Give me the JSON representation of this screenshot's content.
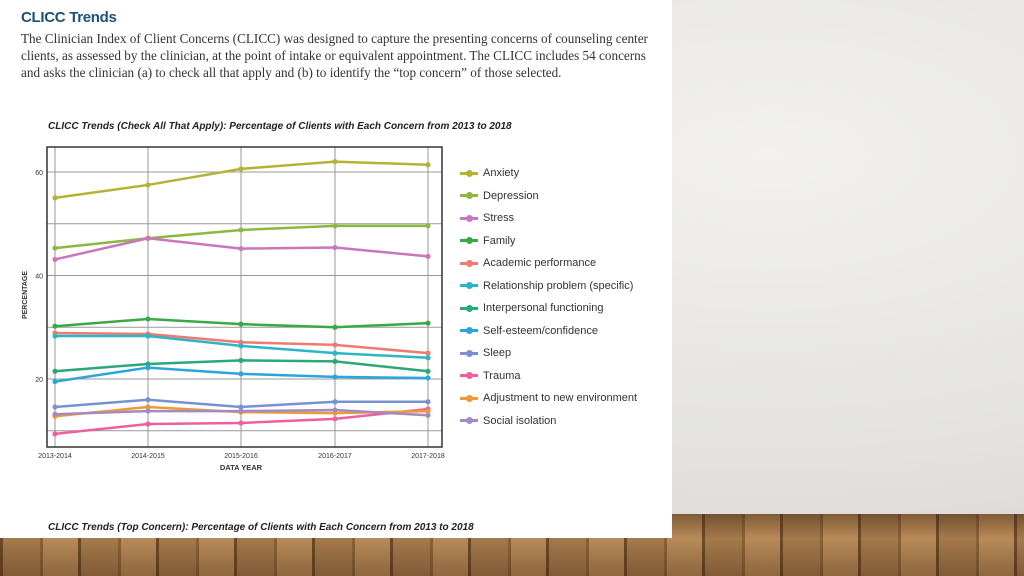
{
  "title": "CLICC Trends",
  "intro": "The Clinician Index of Client Concerns (CLICC) was designed to capture the presenting concerns of counseling center clients, as assessed by the clinician, at the point of intake or equivalent appointment. The CLICC includes 54 concerns and asks the clinician (a) to check all that apply and (b) to identify the “top concern” of those selected.",
  "chart_data": {
    "type": "line",
    "title": "CLICC Trends (Check All That Apply): Percentage of Clients with Each Concern from 2013 to 2018",
    "xlabel": "DATA YEAR",
    "ylabel": "PERCENTAGE",
    "categories": [
      "2013-2014",
      "2014-2015",
      "2015-2016",
      "2016-2017",
      "2017-2018"
    ],
    "yticks": [
      "20",
      "40",
      "60"
    ],
    "ylim": [
      7,
      65
    ],
    "grid": true,
    "legend": "right",
    "series": [
      {
        "name": "Anxiety",
        "color": "#b5b234",
        "values": [
          55.0,
          57.5,
          60.6,
          62.0,
          61.4
        ]
      },
      {
        "name": "Depression",
        "color": "#8ab840",
        "values": [
          45.3,
          47.2,
          48.8,
          49.6,
          49.6
        ]
      },
      {
        "name": "Stress",
        "color": "#c977b8",
        "values": [
          43.1,
          47.2,
          45.2,
          45.4,
          43.7
        ]
      },
      {
        "name": "Family",
        "color": "#3aa845",
        "values": [
          30.2,
          31.6,
          30.6,
          30.0,
          30.8
        ]
      },
      {
        "name": "Academic performance",
        "color": "#ee7a72",
        "values": [
          28.9,
          28.7,
          27.1,
          26.6,
          25.0
        ]
      },
      {
        "name": "Relationship problem (specific)",
        "color": "#2bb5c5",
        "values": [
          28.3,
          28.3,
          26.4,
          25.0,
          24.1
        ]
      },
      {
        "name": "Interpersonal functioning",
        "color": "#2aa878",
        "values": [
          21.5,
          22.9,
          23.6,
          23.4,
          21.5
        ]
      },
      {
        "name": "Self-esteem/confidence",
        "color": "#2aa6dc",
        "values": [
          19.5,
          22.2,
          21.0,
          20.4,
          20.2
        ]
      },
      {
        "name": "Sleep",
        "color": "#7793cf",
        "values": [
          14.6,
          16.0,
          14.6,
          15.6,
          15.6
        ]
      },
      {
        "name": "Trauma",
        "color": "#ee5f9e",
        "values": [
          9.4,
          11.3,
          11.5,
          12.3,
          14.2
        ]
      },
      {
        "name": "Adjustment to new environment",
        "color": "#ee9a35",
        "values": [
          12.8,
          14.6,
          13.6,
          13.4,
          13.8
        ]
      },
      {
        "name": "Social isolation",
        "color": "#a48ac0",
        "values": [
          13.2,
          13.8,
          13.8,
          14.0,
          13.0
        ]
      }
    ]
  },
  "second_chart_title": "CLICC Trends (Top Concern): Percentage of Clients with Each Concern from 2013 to 2018"
}
